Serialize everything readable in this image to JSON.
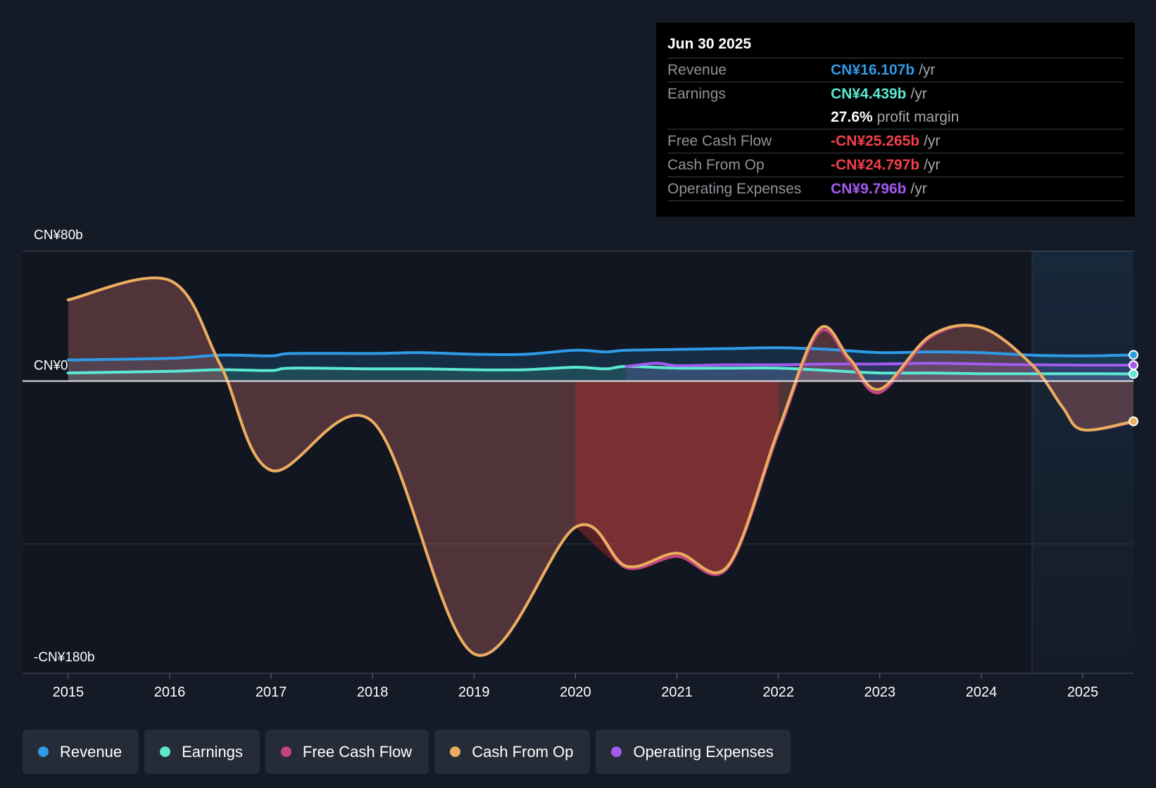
{
  "tooltip": {
    "date": "Jun 30 2025",
    "rows": [
      {
        "name": "Revenue",
        "value": "CN¥16.107b",
        "unit": "/yr",
        "color": "#2f9ae6"
      },
      {
        "name": "Earnings",
        "value": "CN¥4.439b",
        "unit": "/yr",
        "color": "#5ce8d1"
      },
      {
        "name": "",
        "value": "27.6%",
        "unit": "profit margin",
        "color": "#ffffff"
      },
      {
        "name": "Free Cash Flow",
        "value": "-CN¥25.265b",
        "unit": "/yr",
        "color": "#f2414b"
      },
      {
        "name": "Cash From Op",
        "value": "-CN¥24.797b",
        "unit": "/yr",
        "color": "#f2414b"
      },
      {
        "name": "Operating Expenses",
        "value": "CN¥9.796b",
        "unit": "/yr",
        "color": "#a35bf0"
      }
    ]
  },
  "legend": [
    {
      "label": "Revenue",
      "color": "#2f9ae6"
    },
    {
      "label": "Earnings",
      "color": "#5ce8d1"
    },
    {
      "label": "Free Cash Flow",
      "color": "#c2457e"
    },
    {
      "label": "Cash From Op",
      "color": "#e9ae5e"
    },
    {
      "label": "Operating Expenses",
      "color": "#a35bf0"
    }
  ],
  "chart_data": {
    "type": "line",
    "title": "",
    "y_top_label": "CN¥80b",
    "y_zero_label": "CN¥0",
    "y_bottom_label": "-CN¥180b",
    "ylim": [
      -180,
      80
    ],
    "xlim": [
      2014.55,
      2025.5
    ],
    "x_ticks": [
      "2015",
      "2016",
      "2017",
      "2018",
      "2019",
      "2020",
      "2021",
      "2022",
      "2023",
      "2024",
      "2025"
    ],
    "forecast_start": 2024.5,
    "series": [
      {
        "name": "Revenue",
        "color": "#2f9ae6",
        "x": [
          2015,
          2016,
          2016.5,
          2017,
          2017.2,
          2018,
          2018.5,
          2019,
          2019.5,
          2020,
          2020.3,
          2020.5,
          2021,
          2021.5,
          2022,
          2022.5,
          2023,
          2023.5,
          2024,
          2024.5,
          2025,
          2025.5
        ],
        "y": [
          13,
          14,
          16,
          15.5,
          17,
          17,
          17.5,
          16.5,
          16.5,
          19,
          18,
          19,
          19.5,
          20,
          20.5,
          19.5,
          17.5,
          18,
          17.5,
          16,
          15.5,
          16.1
        ]
      },
      {
        "name": "Earnings",
        "color": "#5ce8d1",
        "x": [
          2015,
          2016,
          2016.5,
          2017,
          2017.2,
          2018,
          2018.5,
          2019,
          2019.5,
          2020,
          2020.3,
          2020.5,
          2021,
          2021.5,
          2022,
          2022.5,
          2023,
          2023.5,
          2024,
          2024.5,
          2025,
          2025.5
        ],
        "y": [
          5,
          6,
          7,
          6.5,
          8,
          7.5,
          7.5,
          7,
          7,
          8.5,
          7.5,
          9,
          8,
          8,
          8,
          6.5,
          5,
          5,
          4.5,
          4.5,
          4.5,
          4.4
        ]
      },
      {
        "name": "Operating Expenses",
        "color": "#a35bf0",
        "x": [
          2020.5,
          2020.8,
          2021,
          2021.5,
          2022,
          2022.5,
          2023,
          2023.5,
          2024,
          2024.5,
          2025,
          2025.5
        ],
        "y": [
          9,
          11,
          9.5,
          10,
          10,
          10.5,
          10.5,
          11,
          10.5,
          10,
          9.8,
          9.8
        ]
      },
      {
        "name": "Free Cash Flow",
        "color": "#c2457e",
        "x": [
          2015,
          2016,
          2016.5,
          2017,
          2018,
          2019,
          2020,
          2020.5,
          2021,
          2021.5,
          2022,
          2022.4,
          2022.7,
          2023,
          2023.5,
          2024,
          2024.5,
          2024.8,
          2025,
          2025.5
        ],
        "y": [
          50,
          62,
          10,
          -55,
          -25,
          -168,
          -90,
          -115,
          -108,
          -115,
          -32,
          30,
          12,
          -7,
          27,
          33,
          10,
          -16,
          -30,
          -25.3
        ]
      },
      {
        "name": "Cash From Op",
        "color": "#e9ae5e",
        "x": [
          2015,
          2016,
          2016.5,
          2017,
          2018,
          2019,
          2020,
          2020.5,
          2021,
          2021.5,
          2022,
          2022.4,
          2022.7,
          2023,
          2023.5,
          2024,
          2024.5,
          2024.8,
          2025,
          2025.5
        ],
        "y": [
          50,
          62,
          10,
          -55,
          -25,
          -168,
          -90,
          -114,
          -106,
          -114,
          -30,
          32,
          14,
          -5,
          28,
          33,
          10,
          -16,
          -30,
          -24.8
        ]
      }
    ]
  }
}
